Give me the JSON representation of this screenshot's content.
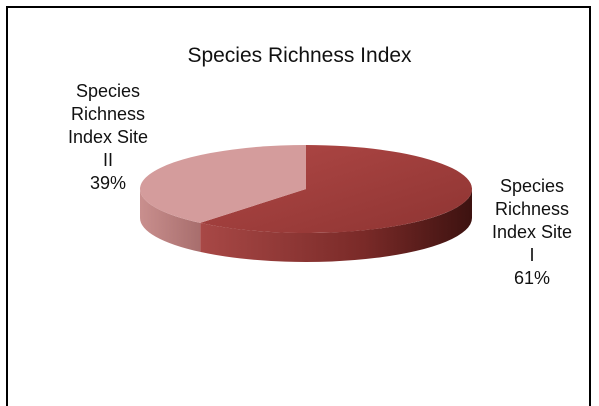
{
  "chart_data": {
    "type": "pie",
    "title": "Species Richness Index",
    "style": "3d",
    "slices": [
      {
        "name_lines": [
          "Species",
          "Richness",
          "Index Site",
          "I"
        ],
        "value": 61,
        "value_label": "61%",
        "color": "#a3403e",
        "side_color": "#7a2a28"
      },
      {
        "name_lines": [
          "Species",
          "Richness",
          "Index Site",
          "II"
        ],
        "value": 39,
        "value_label": "39%",
        "color": "#d49c9c",
        "side_color": "#b57a79"
      }
    ],
    "legend": "none"
  }
}
